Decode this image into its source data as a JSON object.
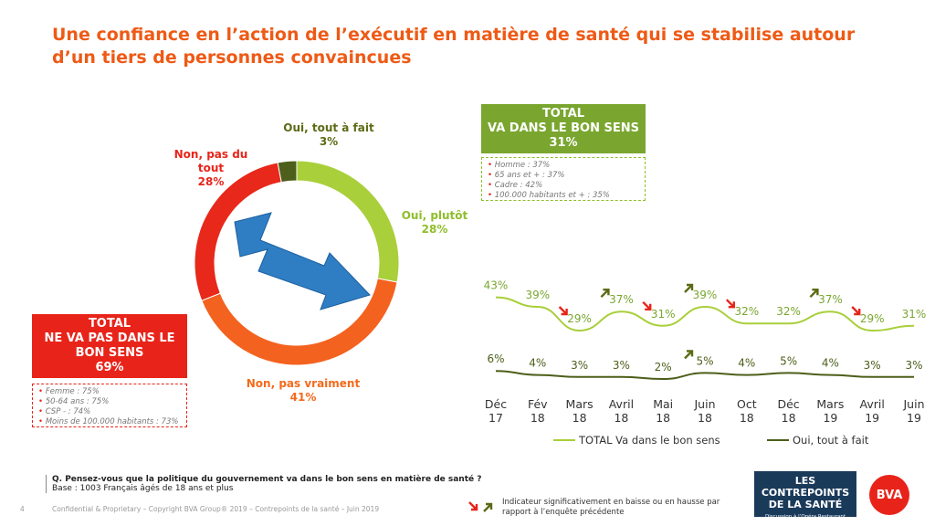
{
  "title": "Une confiance en l’action de l’exécutif en matière de santé qui se stabilise autour d’un tiers de personnes convaincues",
  "donut": {
    "slices": [
      {
        "name": "Oui, tout à fait",
        "value": 3,
        "label": "3%",
        "color": "#4d5f1a"
      },
      {
        "name": "Oui, plutôt",
        "value": 28,
        "label": "28%",
        "color": "#a9cf3a"
      },
      {
        "name": "Non, pas vraiment",
        "value": 41,
        "label": "41%",
        "color": "#f4621f"
      },
      {
        "name": "Non, pas du tout",
        "value": 28,
        "label": "28%",
        "color": "#e8281a"
      }
    ]
  },
  "total_green": {
    "heading1": "TOTAL",
    "heading2": "VA DANS LE BON SENS",
    "value": "31%",
    "color": "#7aa630",
    "bullets": [
      "Homme : 37%",
      "65 ans et + : 37%",
      "Cadre : 42%",
      "100.000 habitants et + : 35%"
    ]
  },
  "total_red": {
    "heading1": "TOTAL",
    "heading2": "NE VA PAS DANS LE",
    "heading3": "BON SENS",
    "value": "69%",
    "color": "#e8241a",
    "bullets": [
      "Femme : 75%",
      "50-64 ans : 75%",
      "CSP - : 74%",
      "Moins de 100.000 habitants : 73%"
    ]
  },
  "chart_data": {
    "type": "line",
    "categories": [
      "Déc 17",
      "Fév 18",
      "Mars 18",
      "Avril 18",
      "Mai 18",
      "Juin 18",
      "Oct 18",
      "Déc 18",
      "Mars 19",
      "Avril 19",
      "Juin 19"
    ],
    "category_lines": [
      [
        "Déc",
        "17"
      ],
      [
        "Fév",
        "18"
      ],
      [
        "Mars",
        "18"
      ],
      [
        "Avril",
        "18"
      ],
      [
        "Mai",
        "18"
      ],
      [
        "Juin",
        "18"
      ],
      [
        "Oct",
        "18"
      ],
      [
        "Déc",
        "18"
      ],
      [
        "Mars",
        "19"
      ],
      [
        "Avril",
        "19"
      ],
      [
        "Juin",
        "19"
      ]
    ],
    "series": [
      {
        "name": "TOTAL Va dans le bon sens",
        "values": [
          43,
          39,
          29,
          37,
          31,
          39,
          32,
          32,
          37,
          29,
          31
        ],
        "labels": [
          "43%",
          "39%",
          "29%",
          "37%",
          "31%",
          "39%",
          "32%",
          "32%",
          "37%",
          "29%",
          "31%"
        ],
        "color": "#a9cf3a"
      },
      {
        "name": "Oui, tout à fait",
        "values": [
          6,
          4,
          3,
          3,
          2,
          5,
          4,
          5,
          4,
          3,
          3
        ],
        "labels": [
          "6%",
          "4%",
          "3%",
          "3%",
          "2%",
          "5%",
          "4%",
          "5%",
          "4%",
          "3%",
          "3%"
        ],
        "color": "#4d5f1a"
      }
    ],
    "indicators": [
      {
        "series": 0,
        "index": 2,
        "dir": "down"
      },
      {
        "series": 0,
        "index": 3,
        "dir": "up"
      },
      {
        "series": 0,
        "index": 4,
        "dir": "down"
      },
      {
        "series": 0,
        "index": 5,
        "dir": "up"
      },
      {
        "series": 0,
        "index": 6,
        "dir": "down"
      },
      {
        "series": 0,
        "index": 8,
        "dir": "up"
      },
      {
        "series": 0,
        "index": 9,
        "dir": "down"
      },
      {
        "series": 1,
        "index": 5,
        "dir": "up"
      }
    ],
    "legend_placement": "bottom"
  },
  "question": "Q. Pensez-vous que la politique du gouvernement va dans le bon sens en matière de santé ?",
  "base": "Base : 1003 Français âgés de 18 ans et plus",
  "page_number": "4",
  "footer": "Confidential & Proprietary – Copyright BVA Group® 2019 – Contrepoints de la santé – Juin 2019",
  "indicator_legend": "Indicateur significativement en baisse ou en hausse par rapport à l’enquête précédente",
  "logo1": {
    "line1": "LES CONTREPOINTS",
    "line2": "DE LA SANTÉ",
    "line3": "Discussion à l’Opéra Restaurant"
  },
  "logo2": {
    "text": "BVA"
  }
}
